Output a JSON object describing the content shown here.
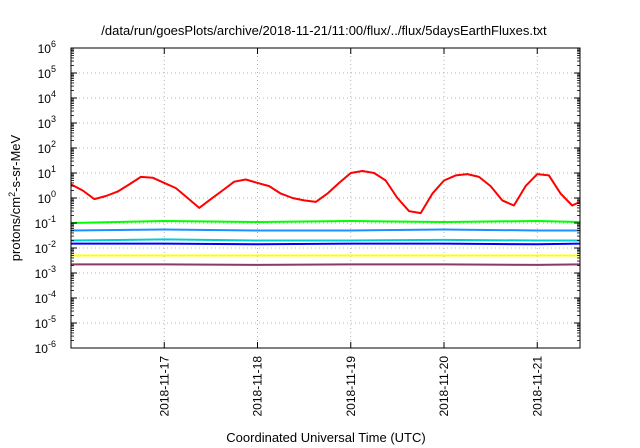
{
  "chart_data": {
    "type": "line",
    "title": "/data/run/goesPlots/archive/2018-11-21/11:00/flux/../flux/5daysEarthFluxes.txt",
    "xlabel": "Coordinated Universal Time (UTC)",
    "ylabel_base": "protons/cm",
    "ylabel_sup": "2",
    "ylabel_rest": "-s-sr-MeV",
    "y_scale": "log",
    "ylim": [
      1e-06,
      1000000.0
    ],
    "y_ticks": [
      {
        "base": "10",
        "exp": "-6",
        "value": 1e-06
      },
      {
        "base": "10",
        "exp": "-5",
        "value": 1e-05
      },
      {
        "base": "10",
        "exp": "-4",
        "value": 0.0001
      },
      {
        "base": "10",
        "exp": "-3",
        "value": 0.001
      },
      {
        "base": "10",
        "exp": "-2",
        "value": 0.01
      },
      {
        "base": "10",
        "exp": "-1",
        "value": 0.1
      },
      {
        "base": "10",
        "exp": "0",
        "value": 1
      },
      {
        "base": "10",
        "exp": "1",
        "value": 10
      },
      {
        "base": "10",
        "exp": "2",
        "value": 100
      },
      {
        "base": "10",
        "exp": "3",
        "value": 1000
      },
      {
        "base": "10",
        "exp": "4",
        "value": 10000
      },
      {
        "base": "10",
        "exp": "5",
        "value": 100000
      },
      {
        "base": "10",
        "exp": "6",
        "value": 1000000
      }
    ],
    "x_range": [
      "2018-11-16 00:00",
      "2018-11-21 11:00"
    ],
    "x_ticks": [
      "2018-11-17",
      "2018-11-18",
      "2018-11-19",
      "2018-11-20",
      "2018-11-21"
    ],
    "grid": true,
    "legend": "none",
    "series": [
      {
        "color": "#ff0000",
        "x": [
          "2018-11-16 00:00",
          "2018-11-16 03:00",
          "2018-11-16 06:00",
          "2018-11-16 09:00",
          "2018-11-16 12:00",
          "2018-11-16 15:00",
          "2018-11-16 18:00",
          "2018-11-16 21:00",
          "2018-11-17 00:00",
          "2018-11-17 03:00",
          "2018-11-17 06:00",
          "2018-11-17 09:00",
          "2018-11-17 12:00",
          "2018-11-17 15:00",
          "2018-11-17 18:00",
          "2018-11-17 21:00",
          "2018-11-18 00:00",
          "2018-11-18 03:00",
          "2018-11-18 06:00",
          "2018-11-18 09:00",
          "2018-11-18 12:00",
          "2018-11-18 15:00",
          "2018-11-18 18:00",
          "2018-11-18 21:00",
          "2018-11-19 00:00",
          "2018-11-19 03:00",
          "2018-11-19 06:00",
          "2018-11-19 09:00",
          "2018-11-19 12:00",
          "2018-11-19 15:00",
          "2018-11-19 18:00",
          "2018-11-19 21:00",
          "2018-11-20 00:00",
          "2018-11-20 03:00",
          "2018-11-20 06:00",
          "2018-11-20 09:00",
          "2018-11-20 12:00",
          "2018-11-20 15:00",
          "2018-11-20 18:00",
          "2018-11-20 21:00",
          "2018-11-21 00:00",
          "2018-11-21 03:00",
          "2018-11-21 06:00",
          "2018-11-21 09:00",
          "2018-11-21 11:00"
        ],
        "y": [
          3.5,
          2.0,
          0.9,
          1.2,
          1.8,
          3.5,
          7.0,
          6.5,
          4.0,
          2.5,
          1.0,
          0.4,
          0.9,
          2.0,
          4.5,
          5.5,
          4.0,
          3.0,
          1.5,
          1.0,
          0.8,
          0.7,
          1.5,
          4.0,
          10,
          12,
          10,
          5.0,
          1.0,
          0.3,
          0.25,
          1.5,
          5.0,
          8.0,
          9.0,
          7.0,
          3.0,
          0.8,
          0.5,
          3.0,
          9.0,
          8.0,
          1.5,
          0.5,
          0.7
        ]
      },
      {
        "color": "#00ff00",
        "x": [
          "2018-11-16 00:00",
          "2018-11-17 00:00",
          "2018-11-18 00:00",
          "2018-11-19 00:00",
          "2018-11-20 00:00",
          "2018-11-21 00:00",
          "2018-11-21 11:00"
        ],
        "y": [
          0.1,
          0.12,
          0.11,
          0.12,
          0.11,
          0.12,
          0.11
        ]
      },
      {
        "color": "#1e90ff",
        "x": [
          "2018-11-16 00:00",
          "2018-11-17 00:00",
          "2018-11-18 00:00",
          "2018-11-19 00:00",
          "2018-11-20 00:00",
          "2018-11-21 00:00",
          "2018-11-21 11:00"
        ],
        "y": [
          0.05,
          0.055,
          0.05,
          0.05,
          0.055,
          0.05,
          0.05
        ]
      },
      {
        "color": "#00ced1",
        "x": [
          "2018-11-16 00:00",
          "2018-11-17 00:00",
          "2018-11-18 00:00",
          "2018-11-19 00:00",
          "2018-11-20 00:00",
          "2018-11-21 00:00",
          "2018-11-21 11:00"
        ],
        "y": [
          0.02,
          0.022,
          0.02,
          0.02,
          0.021,
          0.02,
          0.02
        ]
      },
      {
        "color": "#0000ff",
        "x": [
          "2018-11-16 00:00",
          "2018-11-17 00:00",
          "2018-11-18 00:00",
          "2018-11-19 00:00",
          "2018-11-20 00:00",
          "2018-11-21 00:00",
          "2018-11-21 11:00"
        ],
        "y": [
          0.015,
          0.015,
          0.014,
          0.015,
          0.015,
          0.014,
          0.015
        ]
      },
      {
        "color": "#ffff00",
        "x": [
          "2018-11-16 00:00",
          "2018-11-17 00:00",
          "2018-11-18 00:00",
          "2018-11-19 00:00",
          "2018-11-20 00:00",
          "2018-11-21 00:00",
          "2018-11-21 11:00"
        ],
        "y": [
          0.005,
          0.005,
          0.005,
          0.005,
          0.005,
          0.005,
          0.005
        ]
      },
      {
        "color": "#8b3a62",
        "x": [
          "2018-11-16 00:00",
          "2018-11-17 00:00",
          "2018-11-18 00:00",
          "2018-11-19 00:00",
          "2018-11-20 00:00",
          "2018-11-21 00:00",
          "2018-11-21 11:00"
        ],
        "y": [
          0.0022,
          0.0022,
          0.0021,
          0.0022,
          0.0022,
          0.0021,
          0.0022
        ]
      }
    ]
  }
}
